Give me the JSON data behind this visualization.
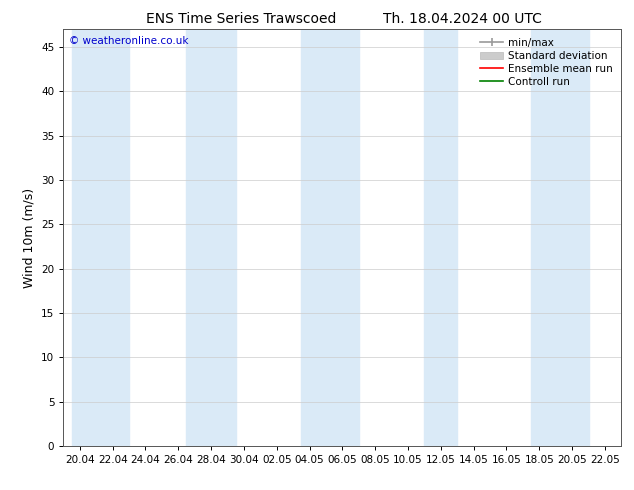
{
  "title_left": "ENS Time Series Trawscoed",
  "title_right": "Th. 18.04.2024 00 UTC",
  "ylabel": "Wind 10m (m/s)",
  "watermark": "© weatheronline.co.uk",
  "ylim": [
    0,
    47
  ],
  "yticks": [
    0,
    5,
    10,
    15,
    20,
    25,
    30,
    35,
    40,
    45
  ],
  "xtick_labels": [
    "20.04",
    "22.04",
    "24.04",
    "26.04",
    "28.04",
    "30.04",
    "02.05",
    "04.05",
    "06.05",
    "08.05",
    "10.05",
    "12.05",
    "14.05",
    "16.05",
    "18.05",
    "20.05",
    "22.05"
  ],
  "background_color": "#ffffff",
  "plot_bg_color": "#ffffff",
  "band_color": "#daeaf7",
  "title_fontsize": 10,
  "tick_fontsize": 7.5,
  "ylabel_fontsize": 9,
  "watermark_fontsize": 7.5,
  "legend_fontsize": 7.5
}
